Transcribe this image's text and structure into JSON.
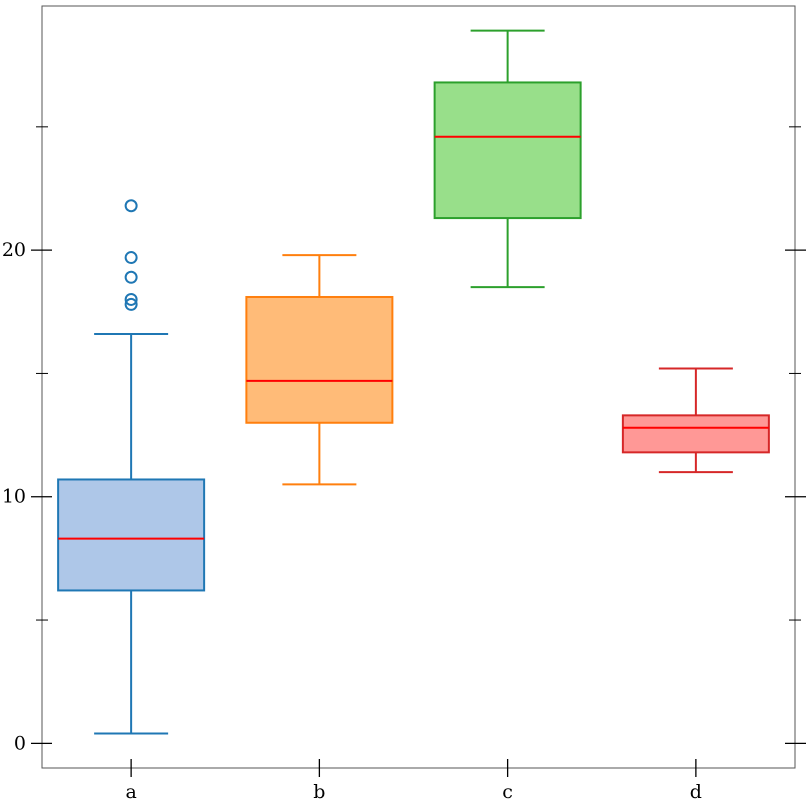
{
  "chart_data": {
    "type": "box",
    "title": "",
    "xlabel": "",
    "ylabel": "",
    "ylim": [
      -1,
      29.9
    ],
    "y_major_ticks": [
      0,
      10,
      20
    ],
    "y_minor_ticks": [
      5,
      15,
      25
    ],
    "grid": false,
    "categories": [
      "a",
      "b",
      "c",
      "d"
    ],
    "boxes": [
      {
        "label": "a",
        "whisker_low": 0.4,
        "q1": 6.2,
        "median": 8.3,
        "q3": 10.7,
        "whisker_high": 16.6,
        "outliers": [
          17.8,
          18.0,
          18.9,
          19.7,
          21.8
        ],
        "box_color": "#aec7e8",
        "line_color": "#1f77b4"
      },
      {
        "label": "b",
        "whisker_low": 10.5,
        "q1": 13.0,
        "median": 14.7,
        "q3": 18.1,
        "whisker_high": 19.8,
        "outliers": [],
        "box_color": "#ffbb78",
        "line_color": "#ff7f0e"
      },
      {
        "label": "c",
        "whisker_low": 18.5,
        "q1": 21.3,
        "median": 24.6,
        "q3": 26.8,
        "whisker_high": 28.9,
        "outliers": [],
        "box_color": "#98df8a",
        "line_color": "#2ca02c"
      },
      {
        "label": "d",
        "whisker_low": 11.0,
        "q1": 11.8,
        "median": 12.8,
        "q3": 13.3,
        "whisker_high": 15.2,
        "outliers": [],
        "box_color": "#ff9896",
        "line_color": "#d62728"
      }
    ],
    "median_color": "#ff0000"
  }
}
